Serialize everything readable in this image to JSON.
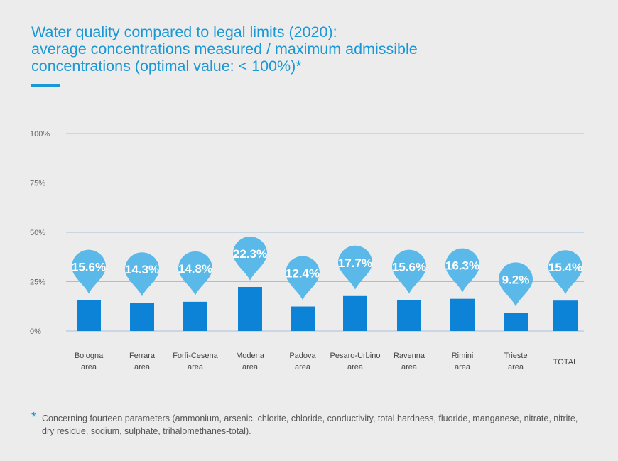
{
  "title_lines": [
    "Water quality compared to legal limits (2020):",
    "average concentrations measured / maximum admissible",
    "concentrations (optimal value: < 100%)*"
  ],
  "colors": {
    "accent": "#1a98d5",
    "bar": "#0c83d6",
    "bubble": "#5ab9e8",
    "grid": "#a9bfd6",
    "background": "#ececec"
  },
  "chart_data": {
    "type": "bar",
    "categories": [
      [
        "Bologna",
        "area"
      ],
      [
        "Ferrara",
        "area"
      ],
      [
        "Forlì-Cesena",
        "area"
      ],
      [
        "Modena",
        "area"
      ],
      [
        "Padova",
        "area"
      ],
      [
        "Pesaro-Urbino",
        "area"
      ],
      [
        "Ravenna",
        "area"
      ],
      [
        "Rimini",
        "area"
      ],
      [
        "Trieste",
        "area"
      ],
      [
        "TOTAL"
      ]
    ],
    "values": [
      15.6,
      14.3,
      14.8,
      22.3,
      12.4,
      17.7,
      15.6,
      16.3,
      9.2,
      15.4
    ],
    "data_labels": [
      "15.6%",
      "14.3%",
      "14.8%",
      "22.3%",
      "12.4%",
      "17.7%",
      "15.6%",
      "16.3%",
      "9.2%",
      "15.4%"
    ],
    "y_ticks": [
      0,
      25,
      50,
      75,
      100
    ],
    "y_tick_labels": [
      "0%",
      "25%",
      "50%",
      "75%",
      "100%"
    ],
    "ylim": [
      0,
      100
    ],
    "grid": true
  },
  "footnote": {
    "marker": "*",
    "text": "Concerning fourteen parameters (ammonium, arsenic, chlorite, chloride, conductivity, total hardness, fluoride, manganese, nitrate, nitrite, dry residue, sodium, sulphate, trihalomethanes-total)."
  }
}
